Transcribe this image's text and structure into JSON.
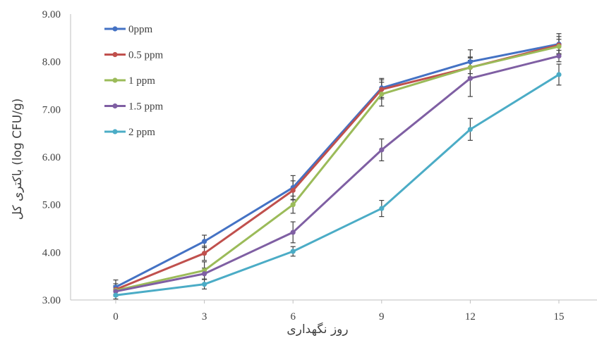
{
  "chart_data": {
    "type": "line",
    "xlabel": "روز نگهداری",
    "ylabel": "(log CFU/g) باکتری کل",
    "x": [
      0,
      3,
      6,
      9,
      12,
      15
    ],
    "x_tick_labels": [
      "0",
      "3",
      "6",
      "9",
      "12",
      "15"
    ],
    "y_tick_labels": [
      "3.00",
      "4.00",
      "5.00",
      "6.00",
      "7.00",
      "8.00",
      "9.00"
    ],
    "ylim": [
      3,
      9
    ],
    "grid": false,
    "legend_position": "top-left",
    "series": [
      {
        "name": "0ppm",
        "color": "#4472C4",
        "values": [
          3.27,
          4.23,
          5.36,
          7.45,
          8.0,
          8.37
        ],
        "errors": [
          0.15,
          0.13,
          0.25,
          0.2,
          0.25,
          0.22
        ]
      },
      {
        "name": "0.5 ppm",
        "color": "#C0504D",
        "values": [
          3.22,
          3.98,
          5.3,
          7.42,
          7.88,
          8.35
        ],
        "errors": [
          0.12,
          0.15,
          0.2,
          0.2,
          0.22,
          0.18
        ]
      },
      {
        "name": "1 ppm",
        "color": "#9BBB59",
        "values": [
          3.2,
          3.62,
          5.0,
          7.32,
          7.88,
          8.32
        ],
        "errors": [
          0.1,
          0.18,
          0.18,
          0.25,
          0.2,
          0.15
        ]
      },
      {
        "name": "1.5 ppm",
        "color": "#7F5FA3",
        "values": [
          3.18,
          3.55,
          4.42,
          6.15,
          7.65,
          8.12
        ],
        "errors": [
          0.1,
          0.12,
          0.22,
          0.23,
          0.38,
          0.12
        ]
      },
      {
        "name": "2 ppm",
        "color": "#4BACC6",
        "values": [
          3.1,
          3.33,
          4.02,
          4.92,
          6.58,
          7.73
        ],
        "errors": [
          0.08,
          0.1,
          0.1,
          0.17,
          0.23,
          0.22
        ]
      }
    ]
  }
}
